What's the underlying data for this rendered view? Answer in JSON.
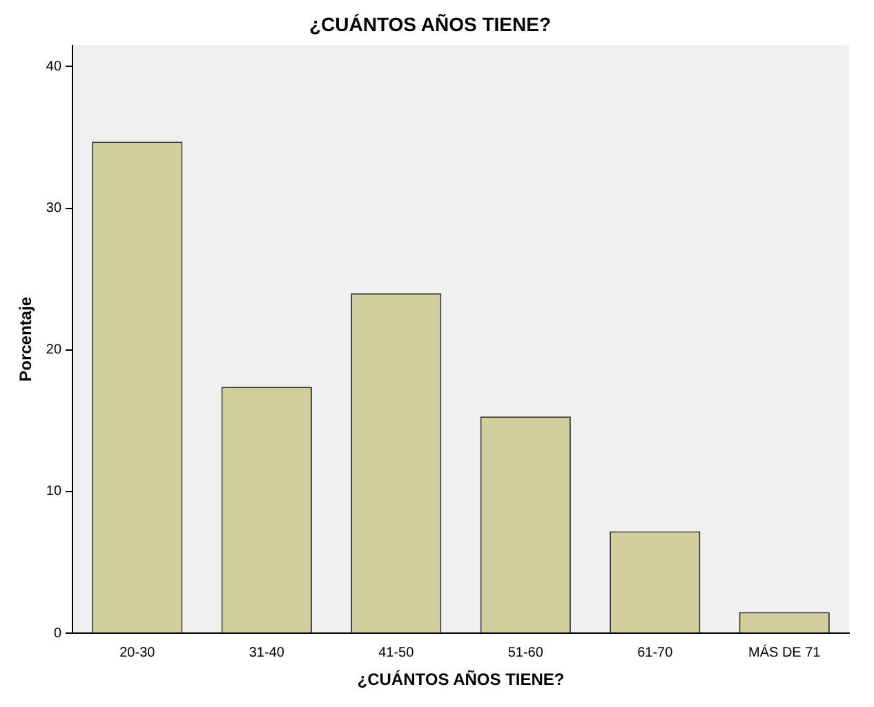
{
  "chart_data": {
    "type": "bar",
    "title": "¿CUÁNTOS AÑOS TIENE?",
    "xlabel": "¿CUÁNTOS AÑOS TIENE?",
    "ylabel": "Porcentaje",
    "categories": [
      "20-30",
      "31-40",
      "41-50",
      "51-60",
      "61-70",
      "MÁS DE 71"
    ],
    "values": [
      34.7,
      17.4,
      24.0,
      15.3,
      7.2,
      1.5
    ],
    "color": "#d3ce9c",
    "ylim": [
      0,
      41.5
    ],
    "yticks": [
      0,
      10,
      20,
      30,
      40
    ],
    "grid": false,
    "legend": false
  }
}
